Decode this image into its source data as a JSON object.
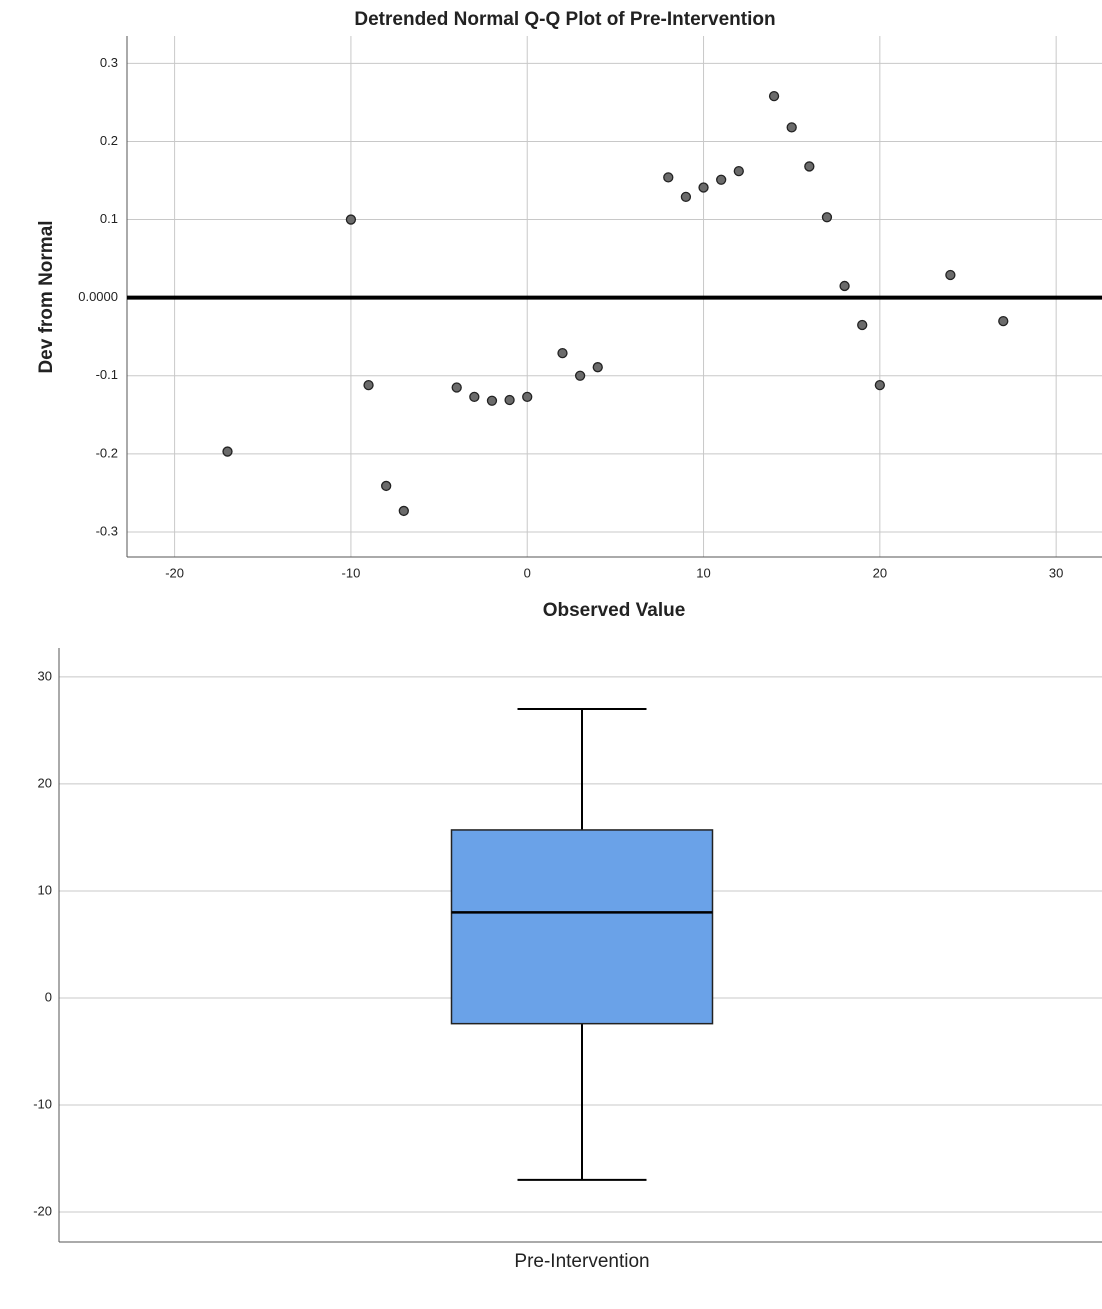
{
  "chart_data": [
    {
      "type": "scatter",
      "title": "Detrended Normal Q-Q Plot of Pre-Intervention",
      "x_label": "Observed Value",
      "y_label": "Dev from Normal",
      "x": [
        -17,
        -10,
        -9,
        -8,
        -7,
        -4,
        -3,
        -2,
        -1,
        0,
        2,
        3,
        4,
        8,
        9,
        10,
        11,
        12,
        14,
        15,
        16,
        17,
        18,
        19,
        20,
        24,
        27
      ],
      "values": [
        -0.197,
        0.1,
        -0.112,
        -0.241,
        -0.273,
        -0.115,
        -0.127,
        -0.132,
        -0.131,
        -0.127,
        -0.071,
        -0.1,
        -0.089,
        0.154,
        0.129,
        0.141,
        0.151,
        0.162,
        0.258,
        0.218,
        0.168,
        0.103,
        0.015,
        -0.035,
        -0.112,
        0.029,
        -0.03
      ],
      "color": "#6b6b6b",
      "xlim": [
        -22.7,
        32.6
      ],
      "xticks": [
        -20,
        -10,
        0,
        10,
        20,
        30
      ],
      "ylim": [
        -0.332,
        0.335
      ],
      "yticks": [
        0.3,
        0.2,
        0.1,
        {
          "value": 0,
          "label": "0.0000"
        },
        -0.1,
        -0.2,
        -0.3
      ],
      "grid": true
    },
    {
      "type": "box",
      "categories": [
        "Pre-Intervention"
      ],
      "min": [
        -17
      ],
      "q1": [
        -2.4
      ],
      "median": [
        8
      ],
      "q3": [
        15.7
      ],
      "max": [
        27
      ],
      "color": "#6aa2e8",
      "ylim": [
        -22.8,
        32.7
      ],
      "yticks": [
        30,
        20,
        10,
        0,
        -10,
        -20
      ],
      "grid": true
    }
  ]
}
